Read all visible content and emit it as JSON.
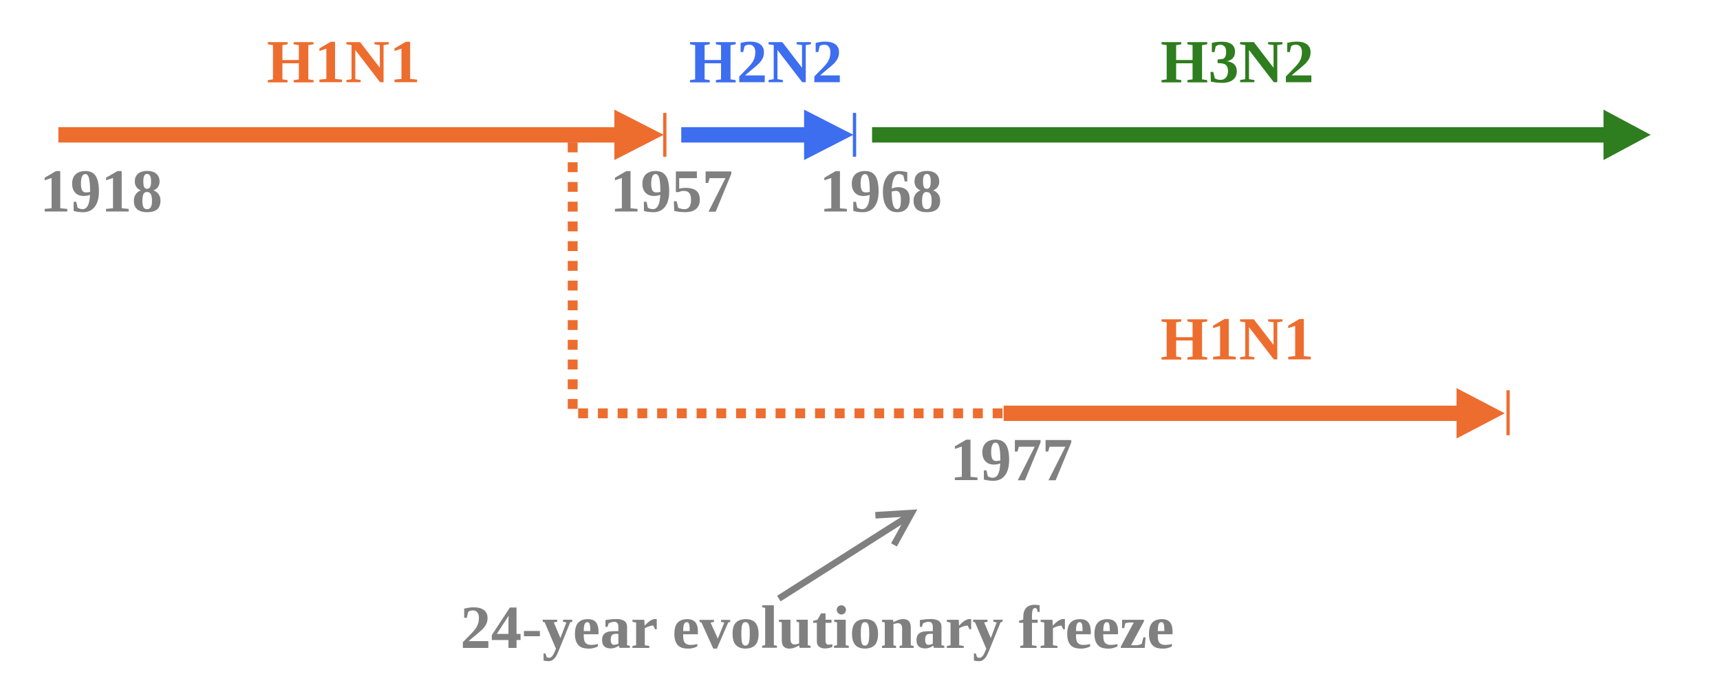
{
  "segments": [
    {
      "label": "H1N1",
      "start": "1918"
    },
    {
      "label": "H2N2",
      "start": "1957"
    },
    {
      "label": "H3N2",
      "start": "1968"
    }
  ],
  "reemergence": {
    "label": "H1N1",
    "start": "1977"
  },
  "annotation": "24-year evolutionary freeze"
}
